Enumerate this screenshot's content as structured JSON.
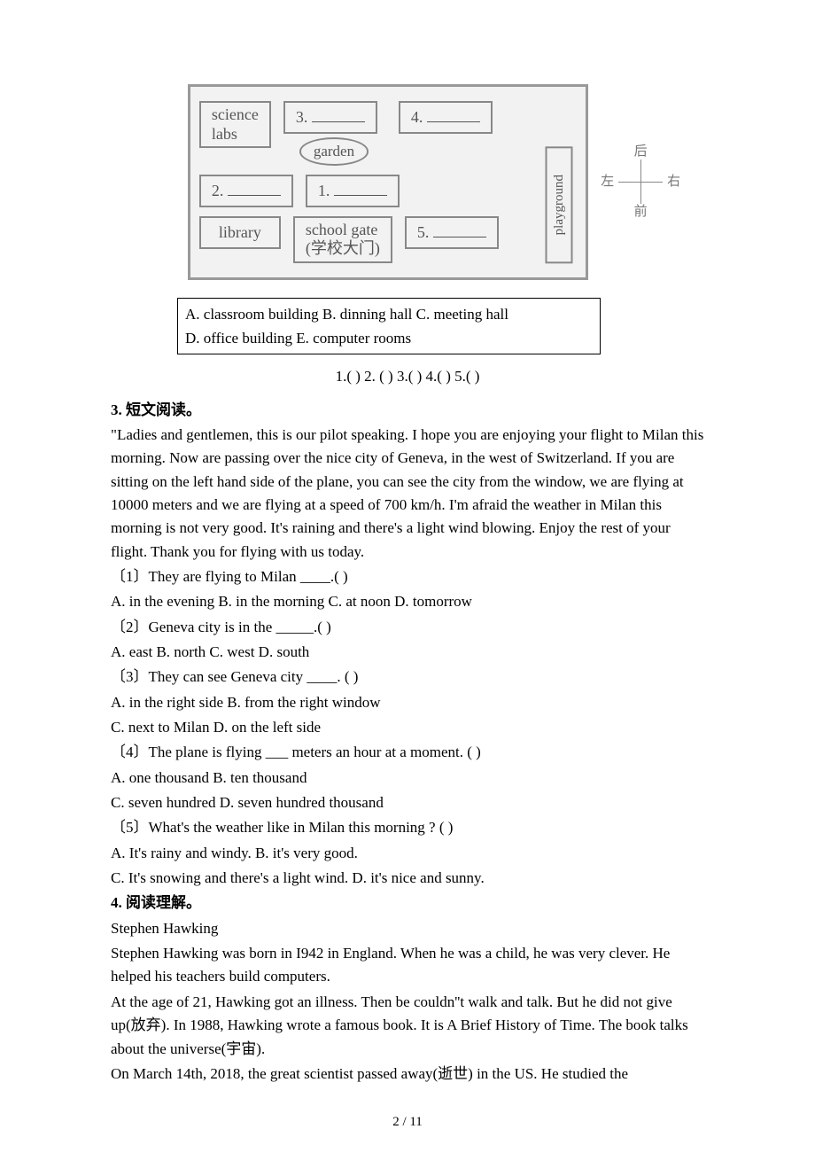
{
  "map": {
    "r1c1": "science\nlabs",
    "r1c2": "3.",
    "r1c3": "4.",
    "garden": "garden",
    "r2c1": "2.",
    "r2c2": "1.",
    "playground": "playground",
    "r3c1": "library",
    "r3c2_line1": "school gate",
    "r3c2_line2": "(学校大门)",
    "r3c3": "5."
  },
  "compass": {
    "top": "后",
    "bottom": "前",
    "left": "左",
    "right": "右"
  },
  "options_box": {
    "line1": "A. classroom building     B. dinning hall     C. meeting hall",
    "line2": "D. office building           E. computer rooms"
  },
  "answer_slots": "1.(     ) 2. (     ) 3.(     )  4.(     ) 5.(      )",
  "q3_title": "3. 短文阅读。",
  "q3_passage": "\"Ladies and gentlemen, this is our pilot speaking. I hope you are enjoying your flight to Milan this morning. Now are passing over the nice city of Geneva, in the west of Switzerland. If you are sitting on the left hand side of the plane, you can see the city from the window, we are flying at 10000 meters and we are flying at a speed of 700 km/h. I'm afraid the weather in Milan this morning is not very good. It's raining and there's a light wind blowing. Enjoy the rest of your flight. Thank you for flying with us today.",
  "q3_items": [
    "〔1〕They are flying to Milan ____.(   )",
    "A. in the evening      B. in the morning     C. at noon     D. tomorrow",
    "〔2〕Geneva city is in the _____.(   )",
    "A. east       B. north       C. west       D. south",
    "〔3〕They can see Geneva city ____. (   )",
    "A. in the right side       B. from the right window",
    "C. next to Milan        D. on the left side",
    "〔4〕The plane is flying ___ meters an hour at a moment. (   )",
    "A. one thousand       B. ten thousand",
    "C. seven hundred      D. seven hundred thousand",
    "〔5〕What's the weather like in Milan this morning ? (   )",
    "A. It's rainy and windy.               B. it's very good.",
    "C. It's snowing and there's a light wind.    D. it's nice and sunny."
  ],
  "q4_title": "4. 阅读理解。",
  "q4_heading": "Stephen Hawking",
  "q4_p1": "Stephen Hawking was born in I942 in England. When he was a child, he was very clever. He helped his teachers build computers.",
  "q4_p2": "At the age of 21, Hawking got an illness. Then be couldn''t walk and talk. But he did not give up(放弃). In 1988, Hawking wrote a famous book. It is A Brief History of Time. The book talks about the universe(宇宙).",
  "q4_p3": "On March 14th, 2018, the great scientist passed away(逝世) in the US. He studied the",
  "page_num": "2 / 11"
}
